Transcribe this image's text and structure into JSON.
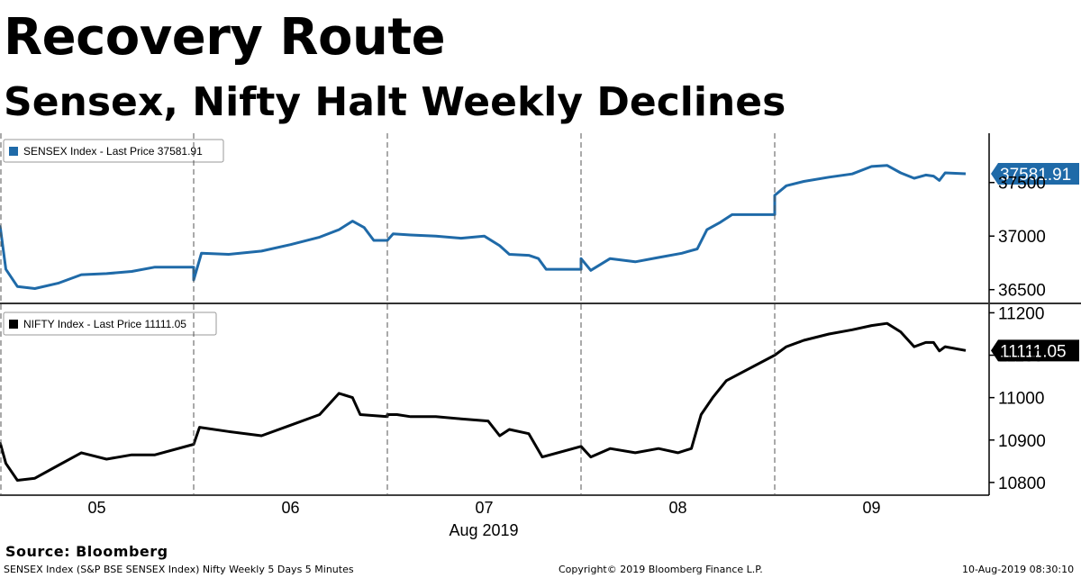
{
  "header": {
    "title": "Recovery Route",
    "subtitle": "Sensex, Nifty Halt Weekly Declines"
  },
  "footer": {
    "source": "Source: Bloomberg",
    "left_note": "SENSEX Index (S&P BSE SENSEX Index) Nifty Weekly 5 Days 5 Minutes",
    "copyright": "Copyright© 2019 Bloomberg Finance L.P.",
    "timestamp": "10-Aug-2019 08:30:10"
  },
  "colors": {
    "sensex": "#1f6aa8",
    "nifty": "#000000",
    "grid": "#555555"
  },
  "chart_data": [
    {
      "type": "line",
      "legend": "SENSEX Index - Last Price 37581.91",
      "last_value_label": "37581.91",
      "x_categories": [
        "05",
        "06",
        "07",
        "08",
        "09"
      ],
      "x_month_label": "Aug 2019",
      "yticks": [
        36500,
        37000,
        37500
      ],
      "ylim": [
        36380,
        37960
      ],
      "series": [
        {
          "name": "SENSEX Index",
          "values": [
            [
              0.0,
              37100
            ],
            [
              0.03,
              36690
            ],
            [
              0.09,
              36530
            ],
            [
              0.18,
              36510
            ],
            [
              0.3,
              36560
            ],
            [
              0.42,
              36640
            ],
            [
              0.55,
              36650
            ],
            [
              0.68,
              36670
            ],
            [
              0.8,
              36710
            ],
            [
              0.85,
              36710
            ],
            [
              1.0,
              36710
            ],
            [
              1.0,
              36590
            ],
            [
              1.04,
              36840
            ],
            [
              1.18,
              36830
            ],
            [
              1.35,
              36860
            ],
            [
              1.5,
              36920
            ],
            [
              1.65,
              36990
            ],
            [
              1.75,
              37060
            ],
            [
              1.82,
              37140
            ],
            [
              1.88,
              37080
            ],
            [
              1.93,
              36960
            ],
            [
              2.0,
              36960
            ],
            [
              2.0,
              36960
            ],
            [
              2.03,
              37020
            ],
            [
              2.12,
              37010
            ],
            [
              2.25,
              37000
            ],
            [
              2.38,
              36980
            ],
            [
              2.5,
              37000
            ],
            [
              2.58,
              36910
            ],
            [
              2.63,
              36830
            ],
            [
              2.73,
              36820
            ],
            [
              2.78,
              36790
            ],
            [
              2.82,
              36690
            ],
            [
              3.0,
              36690
            ],
            [
              3.0,
              36790
            ],
            [
              3.05,
              36680
            ],
            [
              3.15,
              36790
            ],
            [
              3.28,
              36760
            ],
            [
              3.4,
              36800
            ],
            [
              3.52,
              36840
            ],
            [
              3.6,
              36880
            ],
            [
              3.65,
              37060
            ],
            [
              3.72,
              37130
            ],
            [
              3.78,
              37200
            ],
            [
              4.0,
              37200
            ],
            [
              4.0,
              37380
            ],
            [
              4.06,
              37470
            ],
            [
              4.15,
              37510
            ],
            [
              4.28,
              37550
            ],
            [
              4.4,
              37580
            ],
            [
              4.5,
              37650
            ],
            [
              4.58,
              37660
            ],
            [
              4.65,
              37590
            ],
            [
              4.72,
              37540
            ],
            [
              4.78,
              37570
            ],
            [
              4.82,
              37560
            ],
            [
              4.85,
              37520
            ],
            [
              4.88,
              37590
            ],
            [
              5.0,
              37581.91
            ]
          ]
        }
      ]
    },
    {
      "type": "line",
      "legend": "NIFTY Index - Last Price 11111.05",
      "last_value_label": "11111.05",
      "x_categories": [
        "05",
        "06",
        "07",
        "08",
        "09"
      ],
      "x_month_label": "Aug 2019",
      "yticks": [
        10800,
        10900,
        11000,
        11100,
        11200
      ],
      "ylim": [
        10770,
        11220
      ],
      "series": [
        {
          "name": "NIFTY Index",
          "values": [
            [
              0.0,
              10895
            ],
            [
              0.03,
              10845
            ],
            [
              0.09,
              10805
            ],
            [
              0.18,
              10810
            ],
            [
              0.3,
              10840
            ],
            [
              0.42,
              10870
            ],
            [
              0.55,
              10855
            ],
            [
              0.68,
              10865
            ],
            [
              0.8,
              10865
            ],
            [
              1.0,
              10890
            ],
            [
              1.03,
              10930
            ],
            [
              1.18,
              10920
            ],
            [
              1.35,
              10910
            ],
            [
              1.5,
              10935
            ],
            [
              1.65,
              10960
            ],
            [
              1.75,
              11010
            ],
            [
              1.82,
              11000
            ],
            [
              1.86,
              10960
            ],
            [
              2.0,
              10955
            ],
            [
              2.0,
              10960
            ],
            [
              2.05,
              10960
            ],
            [
              2.12,
              10955
            ],
            [
              2.25,
              10955
            ],
            [
              2.38,
              10950
            ],
            [
              2.52,
              10945
            ],
            [
              2.58,
              10910
            ],
            [
              2.63,
              10925
            ],
            [
              2.73,
              10915
            ],
            [
              2.8,
              10860
            ],
            [
              3.0,
              10885
            ],
            [
              3.0,
              10885
            ],
            [
              3.05,
              10860
            ],
            [
              3.15,
              10880
            ],
            [
              3.28,
              10870
            ],
            [
              3.4,
              10880
            ],
            [
              3.5,
              10870
            ],
            [
              3.57,
              10880
            ],
            [
              3.62,
              10960
            ],
            [
              3.68,
              11000
            ],
            [
              3.75,
              11040
            ],
            [
              4.0,
              11100
            ],
            [
              4.0,
              11100
            ],
            [
              4.06,
              11120
            ],
            [
              4.15,
              11135
            ],
            [
              4.28,
              11150
            ],
            [
              4.4,
              11160
            ],
            [
              4.5,
              11170
            ],
            [
              4.58,
              11175
            ],
            [
              4.65,
              11155
            ],
            [
              4.72,
              11120
            ],
            [
              4.78,
              11130
            ],
            [
              4.82,
              11130
            ],
            [
              4.85,
              11110
            ],
            [
              4.88,
              11120
            ],
            [
              5.0,
              11111.05
            ]
          ]
        }
      ]
    }
  ]
}
